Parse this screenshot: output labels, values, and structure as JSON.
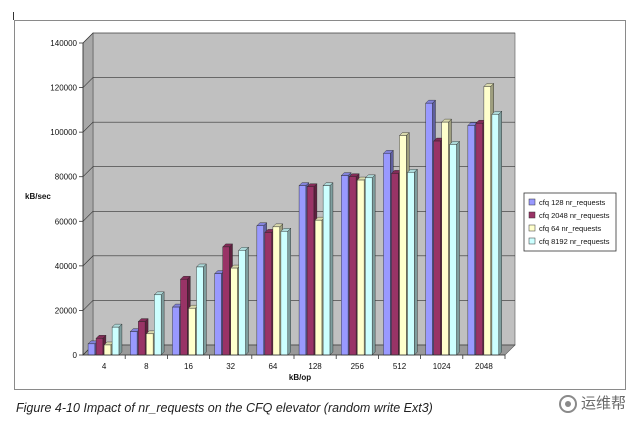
{
  "chart_data": {
    "type": "bar",
    "style": "3d-clustered-column",
    "title": "",
    "xlabel": "kB/op",
    "ylabel": "kB/sec",
    "ylim": [
      0,
      140000
    ],
    "yticks": [
      "0",
      "20000",
      "40000",
      "60000",
      "80000",
      "100000",
      "120000",
      "140000"
    ],
    "ytick_values": [
      0,
      20000,
      40000,
      60000,
      80000,
      100000,
      120000,
      140000
    ],
    "gridlines": true,
    "legend_position": "right",
    "categories": [
      "4",
      "8",
      "16",
      "32",
      "64",
      "128",
      "256",
      "512",
      "1024",
      "2048"
    ],
    "series": [
      {
        "name": "cfq 128 nr_requests",
        "color": "#9999ff",
        "values": [
          5000,
          10500,
          21500,
          36500,
          58000,
          76000,
          80500,
          90500,
          113000,
          103000
        ]
      },
      {
        "name": "cfq 2048 nr_requests",
        "color": "#993366",
        "values": [
          7500,
          15000,
          34000,
          48500,
          55000,
          75500,
          80000,
          81500,
          96000,
          104000
        ]
      },
      {
        "name": "cfq 64 nr_requests",
        "color": "#ffffcc",
        "values": [
          4500,
          9500,
          21000,
          39000,
          57500,
          60500,
          78500,
          98500,
          104500,
          120500
        ]
      },
      {
        "name": "cfq 8192 nr_requests",
        "color": "#ccffff",
        "values": [
          12500,
          27000,
          39500,
          47000,
          55500,
          76000,
          79500,
          82000,
          94500,
          108000
        ]
      }
    ]
  },
  "caption": "Figure 4-10   Impact of nr_requests on the CFQ elevator (random write Ext3)",
  "watermark": "运维帮",
  "colors": {
    "plot_back": "#c0c0c0",
    "floor": "#9a9a9a",
    "side_wall": "#a8a8a8",
    "grid": "#333333"
  }
}
